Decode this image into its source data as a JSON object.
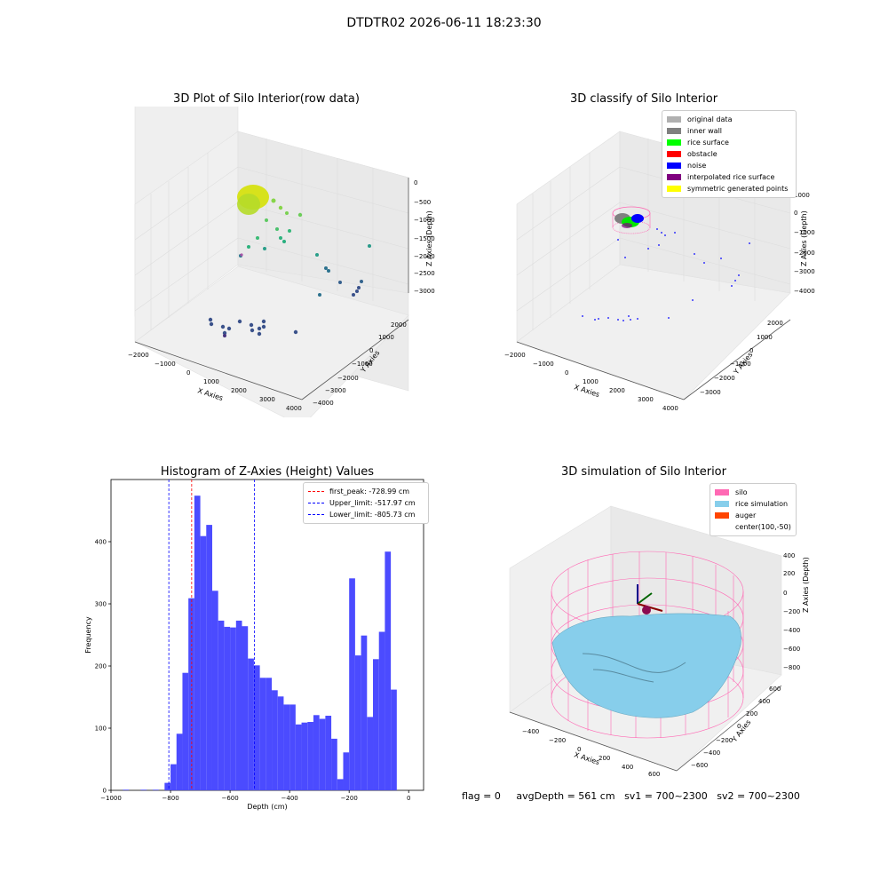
{
  "figure": {
    "suptitle": "DTDTR02 2026-06-11 18:23:30",
    "status": {
      "flag": "flag = 0",
      "avg_depth": "avgDepth = 561 cm",
      "sv1": "sv1 = 700~2300",
      "sv2": "sv2 = 700~2300"
    }
  },
  "panels": {
    "raw": {
      "title": "3D Plot of Silo Interior(row data)",
      "xlabel": "X Axies",
      "ylabel": "Y Axies",
      "zlabel": "Z Axies (Depth)",
      "xticks": [
        "−2000",
        "−1000",
        "0",
        "1000",
        "2000",
        "3000",
        "4000"
      ],
      "yticks": [
        "−4000",
        "−3000",
        "−2000",
        "−1000",
        "0",
        "1000",
        "2000"
      ],
      "zticks": [
        "−3000",
        "−2500",
        "−2000",
        "−1500",
        "−1000",
        "−500",
        "0"
      ]
    },
    "classify": {
      "title": "3D classify of Silo Interior",
      "xlabel": "X Axies",
      "ylabel": "Y Axies",
      "zlabel": "Z Axies (Depth)",
      "xticks": [
        "−2000",
        "−1000",
        "0",
        "1000",
        "2000",
        "3000",
        "4000"
      ],
      "yticks": [
        "−3000",
        "−2000",
        "−1000",
        "0",
        "1000",
        "2000"
      ],
      "zticks": [
        "−4000",
        "−3000",
        "−2000",
        "−1000",
        "0",
        "1000"
      ],
      "legend": [
        {
          "label": "original data",
          "color": "#b0b0b0"
        },
        {
          "label": "inner wall",
          "color": "#808080"
        },
        {
          "label": "rice surface",
          "color": "#00ff00"
        },
        {
          "label": "obstacle",
          "color": "#ff0000"
        },
        {
          "label": "noise",
          "color": "#0000ff"
        },
        {
          "label": "interpolated rice surface",
          "color": "#800080"
        },
        {
          "label": "symmetric generated points",
          "color": "#ffff00"
        }
      ]
    },
    "simulation": {
      "title": "3D simulation of Silo Interior",
      "xlabel": "X Axies",
      "ylabel": "Y Axies",
      "zlabel": "Z Axies (Depth)",
      "xticks": [
        "−400",
        "−200",
        "0",
        "200",
        "400",
        "600"
      ],
      "yticks": [
        "−600",
        "−400",
        "−200",
        "0",
        "200",
        "400",
        "600"
      ],
      "zticks": [
        "−800",
        "−600",
        "−400",
        "−200",
        "0",
        "200",
        "400"
      ],
      "legend": [
        {
          "label": "silo",
          "color": "#ff69b4"
        },
        {
          "label": "rice simulation",
          "color": "#87ceeb"
        },
        {
          "label": "auger",
          "color": "#ff4500"
        },
        {
          "label": "center(100,-50)",
          "color": ""
        }
      ]
    }
  },
  "chart_data": [
    {
      "type": "bar",
      "title": "Histogram of Z-Axies (Height) Values",
      "xlabel": "Depth (cm)",
      "ylabel": "Frequency",
      "xlim": [
        -1000,
        50
      ],
      "ylim": [
        0,
        500
      ],
      "xticks": [
        -1000,
        -800,
        -600,
        -400,
        -200,
        0
      ],
      "yticks": [
        0,
        100,
        200,
        300,
        400
      ],
      "bar_color": "#4b4bff",
      "bins": [
        {
          "x0": -960,
          "x1": -940,
          "value": 1
        },
        {
          "x0": -900,
          "x1": -880,
          "value": 1
        },
        {
          "x0": -860,
          "x1": -840,
          "value": 1
        },
        {
          "x0": -820,
          "x1": -800,
          "value": 12
        },
        {
          "x0": -800,
          "x1": -780,
          "value": 42
        },
        {
          "x0": -780,
          "x1": -760,
          "value": 91
        },
        {
          "x0": -760,
          "x1": -740,
          "value": 189
        },
        {
          "x0": -740,
          "x1": -720,
          "value": 309
        },
        {
          "x0": -720,
          "x1": -700,
          "value": 474
        },
        {
          "x0": -700,
          "x1": -680,
          "value": 409
        },
        {
          "x0": -680,
          "x1": -660,
          "value": 427
        },
        {
          "x0": -660,
          "x1": -640,
          "value": 321
        },
        {
          "x0": -640,
          "x1": -620,
          "value": 273
        },
        {
          "x0": -620,
          "x1": -600,
          "value": 263
        },
        {
          "x0": -600,
          "x1": -580,
          "value": 262
        },
        {
          "x0": -580,
          "x1": -560,
          "value": 273
        },
        {
          "x0": -560,
          "x1": -540,
          "value": 264
        },
        {
          "x0": -540,
          "x1": -520,
          "value": 212
        },
        {
          "x0": -520,
          "x1": -500,
          "value": 201
        },
        {
          "x0": -500,
          "x1": -480,
          "value": 181
        },
        {
          "x0": -480,
          "x1": -460,
          "value": 181
        },
        {
          "x0": -460,
          "x1": -440,
          "value": 161
        },
        {
          "x0": -440,
          "x1": -420,
          "value": 151
        },
        {
          "x0": -420,
          "x1": -400,
          "value": 138
        },
        {
          "x0": -400,
          "x1": -380,
          "value": 138
        },
        {
          "x0": -380,
          "x1": -360,
          "value": 106
        },
        {
          "x0": -360,
          "x1": -340,
          "value": 109
        },
        {
          "x0": -340,
          "x1": -320,
          "value": 110
        },
        {
          "x0": -320,
          "x1": -300,
          "value": 121
        },
        {
          "x0": -300,
          "x1": -280,
          "value": 115
        },
        {
          "x0": -280,
          "x1": -260,
          "value": 120
        },
        {
          "x0": -260,
          "x1": -240,
          "value": 83
        },
        {
          "x0": -240,
          "x1": -220,
          "value": 18
        },
        {
          "x0": -220,
          "x1": -200,
          "value": 61
        },
        {
          "x0": -200,
          "x1": -180,
          "value": 341
        },
        {
          "x0": -180,
          "x1": -160,
          "value": 217
        },
        {
          "x0": -160,
          "x1": -140,
          "value": 249
        },
        {
          "x0": -140,
          "x1": -120,
          "value": 118
        },
        {
          "x0": -120,
          "x1": -100,
          "value": 211
        },
        {
          "x0": -100,
          "x1": -80,
          "value": 255
        },
        {
          "x0": -80,
          "x1": -60,
          "value": 384
        },
        {
          "x0": -60,
          "x1": -40,
          "value": 162
        }
      ],
      "vlines": [
        {
          "label": "first_peak: -728.99 cm",
          "x": -728.99,
          "color": "#ff0000"
        },
        {
          "label": "Upper_limit: -517.97 cm",
          "x": -517.97,
          "color": "#0000ff"
        },
        {
          "label": "Lower_limit: -805.73 cm",
          "x": -805.73,
          "color": "#0000ff"
        }
      ],
      "legend_position": "top-right"
    }
  ]
}
